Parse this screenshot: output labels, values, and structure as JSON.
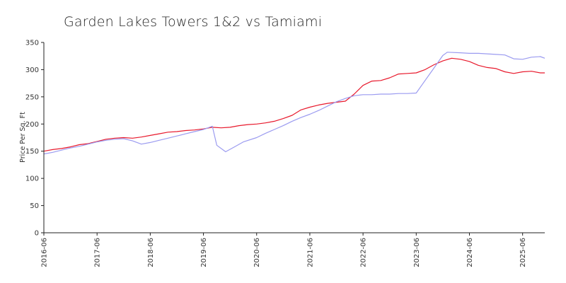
{
  "chart_data": {
    "type": "line",
    "title": "Garden Lakes Towers 1&2 vs Tamiami",
    "xlabel": "",
    "ylabel": "Price Per Sq. Ft",
    "xlim": [
      "2016-06",
      "2025-11"
    ],
    "ylim": [
      0,
      350
    ],
    "y_ticks": [
      0,
      50,
      100,
      150,
      200,
      250,
      300,
      350
    ],
    "x_ticks": [
      "2016-06",
      "2017-06",
      "2018-06",
      "2019-06",
      "2020-06",
      "2021-06",
      "2022-06",
      "2023-06",
      "2024-06",
      "2025-06"
    ],
    "grid": false,
    "legend": "none",
    "series": [
      {
        "color": "#e8192c",
        "points": [
          [
            "2016-06",
            150
          ],
          [
            "2016-08",
            153
          ],
          [
            "2016-10",
            155
          ],
          [
            "2016-12",
            158
          ],
          [
            "2017-02",
            162
          ],
          [
            "2017-04",
            164
          ],
          [
            "2017-06",
            168
          ],
          [
            "2017-08",
            172
          ],
          [
            "2017-10",
            174
          ],
          [
            "2017-12",
            175
          ],
          [
            "2018-02",
            174
          ],
          [
            "2018-04",
            176
          ],
          [
            "2018-06",
            179
          ],
          [
            "2018-08",
            182
          ],
          [
            "2018-10",
            185
          ],
          [
            "2018-12",
            186
          ],
          [
            "2019-02",
            188
          ],
          [
            "2019-04",
            189
          ],
          [
            "2019-06",
            191
          ],
          [
            "2019-08",
            194
          ],
          [
            "2019-10",
            193
          ],
          [
            "2019-12",
            194
          ],
          [
            "2020-02",
            197
          ],
          [
            "2020-04",
            199
          ],
          [
            "2020-06",
            200
          ],
          [
            "2020-08",
            202
          ],
          [
            "2020-10",
            205
          ],
          [
            "2020-12",
            210
          ],
          [
            "2021-02",
            216
          ],
          [
            "2021-04",
            226
          ],
          [
            "2021-06",
            231
          ],
          [
            "2021-08",
            235
          ],
          [
            "2021-10",
            238
          ],
          [
            "2021-12",
            240
          ],
          [
            "2022-02",
            242
          ],
          [
            "2022-04",
            255
          ],
          [
            "2022-06",
            271
          ],
          [
            "2022-08",
            279
          ],
          [
            "2022-10",
            280
          ],
          [
            "2022-12",
            285
          ],
          [
            "2023-02",
            292
          ],
          [
            "2023-04",
            293
          ],
          [
            "2023-06",
            294
          ],
          [
            "2023-08",
            300
          ],
          [
            "2023-10",
            309
          ],
          [
            "2023-12",
            316
          ],
          [
            "2024-02",
            321
          ],
          [
            "2024-04",
            319
          ],
          [
            "2024-06",
            315
          ],
          [
            "2024-08",
            308
          ],
          [
            "2024-10",
            304
          ],
          [
            "2024-12",
            302
          ],
          [
            "2025-02",
            296
          ],
          [
            "2025-04",
            293
          ],
          [
            "2025-06",
            296
          ],
          [
            "2025-08",
            297
          ],
          [
            "2025-10",
            294
          ],
          [
            "2025-11",
            294
          ]
        ]
      },
      {
        "color": "#9b9bf0",
        "points": [
          [
            "2016-06",
            145
          ],
          [
            "2016-08",
            148
          ],
          [
            "2016-10",
            152
          ],
          [
            "2016-12",
            156
          ],
          [
            "2017-02",
            159
          ],
          [
            "2017-04",
            163
          ],
          [
            "2017-06",
            167
          ],
          [
            "2017-08",
            170
          ],
          [
            "2017-10",
            172
          ],
          [
            "2017-12",
            173
          ],
          [
            "2018-02",
            169
          ],
          [
            "2018-04",
            163
          ],
          [
            "2018-06",
            166
          ],
          [
            "2018-08",
            170
          ],
          [
            "2018-10",
            174
          ],
          [
            "2018-12",
            178
          ],
          [
            "2019-02",
            182
          ],
          [
            "2019-04",
            186
          ],
          [
            "2019-06",
            190
          ],
          [
            "2019-08",
            196
          ],
          [
            "2019-09",
            161
          ],
          [
            "2019-11",
            149
          ],
          [
            "2020-01",
            158
          ],
          [
            "2020-03",
            167
          ],
          [
            "2020-06",
            175
          ],
          [
            "2020-08",
            183
          ],
          [
            "2020-10",
            190
          ],
          [
            "2020-12",
            197
          ],
          [
            "2021-02",
            205
          ],
          [
            "2021-04",
            212
          ],
          [
            "2021-06",
            218
          ],
          [
            "2021-08",
            225
          ],
          [
            "2021-10",
            233
          ],
          [
            "2021-12",
            241
          ],
          [
            "2022-02",
            247
          ],
          [
            "2022-04",
            252
          ],
          [
            "2022-06",
            254
          ],
          [
            "2022-08",
            254
          ],
          [
            "2022-10",
            255
          ],
          [
            "2022-12",
            255
          ],
          [
            "2023-02",
            256
          ],
          [
            "2023-04",
            256
          ],
          [
            "2023-06",
            257
          ],
          [
            "2023-08",
            280
          ],
          [
            "2023-10",
            303
          ],
          [
            "2023-12",
            326
          ],
          [
            "2024-01",
            332
          ],
          [
            "2024-04",
            331
          ],
          [
            "2024-06",
            330
          ],
          [
            "2024-08",
            330
          ],
          [
            "2024-10",
            329
          ],
          [
            "2024-12",
            328
          ],
          [
            "2025-02",
            327
          ],
          [
            "2025-04",
            320
          ],
          [
            "2025-06",
            319
          ],
          [
            "2025-08",
            323
          ],
          [
            "2025-10",
            324
          ],
          [
            "2025-11",
            321
          ]
        ]
      }
    ]
  }
}
